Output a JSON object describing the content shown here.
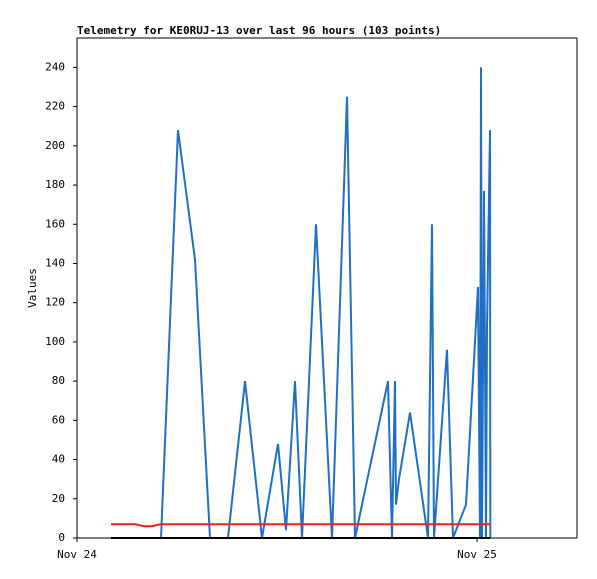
{
  "chart_data": {
    "type": "line",
    "title": "Telemetry for KE0RUJ-13 over last 96 hours (103 points)",
    "y_label": "Values",
    "xlim": [
      0,
      30
    ],
    "xticks": [
      {
        "value": 0,
        "label": "Nov 24"
      },
      {
        "value": 24,
        "label": "Nov 25"
      }
    ],
    "ylim": [
      0,
      255
    ],
    "yticks": [
      0,
      20,
      40,
      60,
      80,
      100,
      120,
      140,
      160,
      180,
      200,
      220,
      240
    ],
    "series": [
      {
        "color": "#1f6fc6",
        "x": [
          5.04,
          6.06,
          7.08,
          7.98,
          9.06,
          10.08,
          11.1,
          12.06,
          12.54,
          13.08,
          13.5,
          14.34,
          15.3,
          16.2,
          16.68,
          18.66,
          18.9,
          19.08,
          19.14,
          19.32,
          19.98,
          21.06,
          21.3,
          21.42,
          22.2,
          22.56,
          23.34,
          24.06,
          24.18,
          24.24,
          24.3,
          24.42,
          24.54,
          24.6,
          24.78,
          24.8
        ],
        "values": [
          0,
          208,
          142,
          0,
          0,
          80,
          0,
          48,
          4,
          80,
          0,
          160,
          0,
          225,
          0,
          80,
          0,
          80,
          17,
          30,
          64,
          0,
          160,
          0,
          96,
          0,
          17,
          128,
          0,
          240,
          0,
          177,
          0,
          107,
          208,
          0
        ]
      },
      {
        "color": "#e8231a",
        "x": [
          2.04,
          3.5,
          4.0,
          4.5,
          5.0,
          24.8
        ],
        "values": [
          7,
          7,
          6,
          6,
          7,
          7
        ]
      },
      {
        "color": "#000000",
        "x": [
          2.04,
          24.8
        ],
        "values": [
          0,
          0
        ]
      }
    ]
  }
}
